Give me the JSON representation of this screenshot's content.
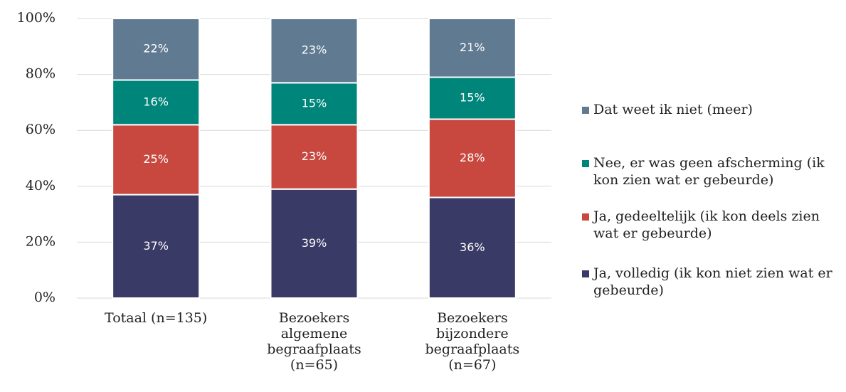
{
  "chart_data": {
    "type": "stacked_bar",
    "categories": [
      "Totaal (n=135)",
      "Bezoekers algemene begraafplaats (n=65)",
      "Bezoekers bijzondere begraafplaats (n=67)"
    ],
    "series": [
      {
        "name": "Ja, volledig (ik kon niet zien wat er gebeurde)",
        "color": "#3a3a66",
        "values": [
          37,
          39,
          36
        ],
        "value_labels": [
          "37%",
          "39%",
          "36%"
        ]
      },
      {
        "name": "Ja, gedeeltelijk (ik kon deels zien wat er gebeurde)",
        "color": "#c8483f",
        "values": [
          25,
          23,
          28
        ],
        "value_labels": [
          "25%",
          "23%",
          "28%"
        ]
      },
      {
        "name": "Nee, er was geen afscherming (ik kon zien wat er gebeurde)",
        "color": "#00857a",
        "values": [
          16,
          15,
          15
        ],
        "value_labels": [
          "16%",
          "15%",
          "15%"
        ]
      },
      {
        "name": "Dat weet ik niet (meer)",
        "color": "#5f7a91",
        "values": [
          22,
          23,
          21
        ],
        "value_labels": [
          "22%",
          "23%",
          "21%"
        ]
      }
    ],
    "ylim": [
      0,
      100
    ],
    "yticks": [
      {
        "value": 0,
        "label": "0%"
      },
      {
        "value": 20,
        "label": "20%"
      },
      {
        "value": 40,
        "label": "40%"
      },
      {
        "value": 60,
        "label": "60%"
      },
      {
        "value": 80,
        "label": "80%"
      },
      {
        "value": 100,
        "label": "100%"
      }
    ],
    "grid": true,
    "legend": "right"
  }
}
